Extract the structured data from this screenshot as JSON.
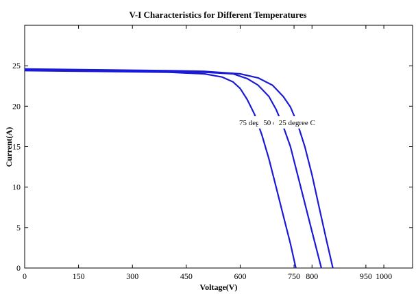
{
  "chart_data": {
    "type": "line",
    "title": "V-I Characteristics for Different Temperatures",
    "xlabel": "Voltage(V)",
    "ylabel": "Current(A)",
    "xlim": [
      0,
      1080
    ],
    "ylim": [
      0,
      30
    ],
    "xticks": [
      0,
      150,
      300,
      450,
      600,
      750,
      800,
      950,
      1000
    ],
    "xtick_labels": [
      "0",
      "150",
      "300",
      "450",
      "600",
      "750",
      "800",
      "950",
      "1000"
    ],
    "yticks": [
      0,
      5,
      10,
      15,
      20,
      25
    ],
    "ytick_labels": [
      "0",
      "5",
      "10",
      "15",
      "20",
      "25"
    ],
    "grid": false,
    "line_color": "#1a1ad6",
    "series": [
      {
        "name": "75 degree C",
        "x": [
          0,
          200,
          400,
          500,
          550,
          580,
          600,
          620,
          640,
          660,
          680,
          700,
          720,
          740,
          755
        ],
        "y": [
          24.4,
          24.3,
          24.2,
          24.0,
          23.6,
          23.0,
          22.2,
          20.8,
          19.0,
          16.5,
          13.5,
          10.0,
          6.5,
          3.0,
          0
        ]
      },
      {
        "name": "50 degree C",
        "x": [
          0,
          200,
          400,
          500,
          580,
          620,
          650,
          680,
          700,
          720,
          740,
          760,
          780,
          800,
          826
        ],
        "y": [
          24.5,
          24.4,
          24.3,
          24.2,
          24.0,
          23.4,
          22.6,
          21.2,
          19.6,
          17.5,
          15.0,
          11.5,
          8.0,
          4.5,
          0
        ]
      },
      {
        "name": "25 degree C",
        "x": [
          0,
          200,
          400,
          500,
          600,
          650,
          690,
          720,
          740,
          760,
          780,
          800,
          820,
          840,
          858
        ],
        "y": [
          24.6,
          24.5,
          24.4,
          24.3,
          24.0,
          23.5,
          22.6,
          21.2,
          19.9,
          17.8,
          15.0,
          11.5,
          7.5,
          3.5,
          0
        ]
      }
    ]
  }
}
